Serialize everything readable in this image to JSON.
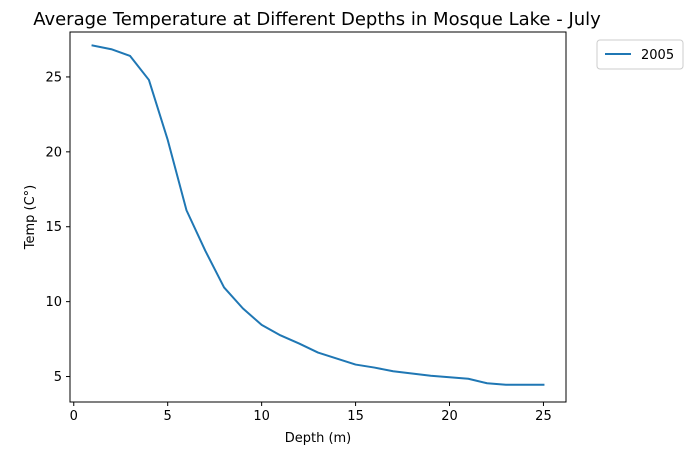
{
  "chart_data": {
    "type": "line",
    "title": "Average Temperature at Different Depths in Mosque Lake - July",
    "xlabel": "Depth (m)",
    "ylabel": "Temp (C°)",
    "xlim": [
      -0.2,
      26.2
    ],
    "ylim": [
      3.3,
      28.0
    ],
    "xticks": [
      0,
      5,
      10,
      15,
      20,
      25
    ],
    "yticks": [
      5,
      10,
      15,
      20,
      25
    ],
    "grid": false,
    "legend_position": "outside-top-right",
    "series": [
      {
        "name": "2005",
        "color": "#1f77b4",
        "x": [
          1,
          2,
          3,
          4,
          5,
          6,
          7,
          8,
          9,
          10,
          11,
          12,
          13,
          14,
          15,
          16,
          17,
          18,
          19,
          20,
          21,
          22,
          23,
          24,
          25
        ],
        "y": [
          27.1,
          26.85,
          26.4,
          24.8,
          20.8,
          16.1,
          13.4,
          10.95,
          9.55,
          8.45,
          7.75,
          7.2,
          6.6,
          6.2,
          5.8,
          5.6,
          5.35,
          5.2,
          5.05,
          4.95,
          4.85,
          4.55,
          4.45,
          4.45,
          4.45
        ]
      }
    ]
  }
}
